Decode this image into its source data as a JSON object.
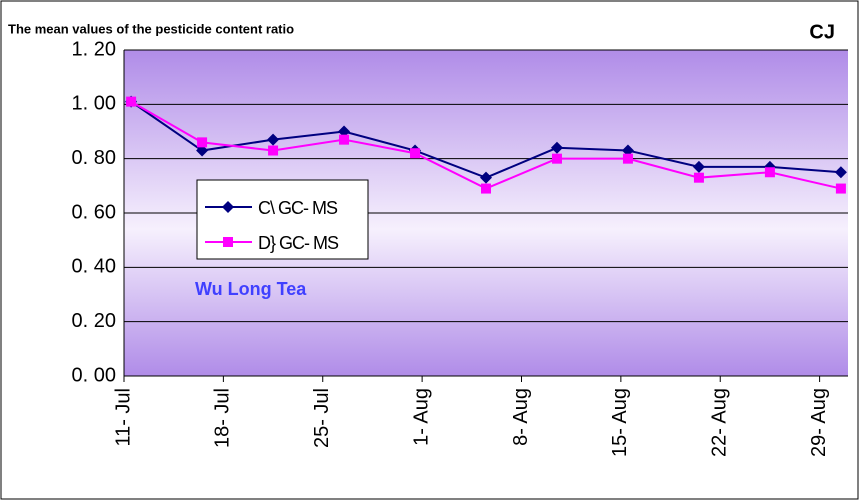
{
  "chart_data": {
    "type": "line",
    "title": "The mean values of the pesticide content ratio",
    "corner_label": "CJ",
    "annotation": "Wu Long Tea",
    "x": [
      "07-11",
      "07-16",
      "07-21",
      "07-26",
      "07-31",
      "08-05",
      "08-10",
      "08-15",
      "08-20",
      "08-25",
      "08-30"
    ],
    "xlim": [
      "07-11",
      "08-30"
    ],
    "xticks": [
      {
        "value": "07-11",
        "label": "11- Jul"
      },
      {
        "value": "07-18",
        "label": "18- Jul"
      },
      {
        "value": "07-25",
        "label": "25- Jul"
      },
      {
        "value": "08-01",
        "label": "1- Aug"
      },
      {
        "value": "08-08",
        "label": "8- Aug"
      },
      {
        "value": "08-15",
        "label": "15- Aug"
      },
      {
        "value": "08-22",
        "label": "22- Aug"
      },
      {
        "value": "08-29",
        "label": "29- Aug"
      }
    ],
    "ylim": [
      0,
      1.2
    ],
    "yticks": [
      {
        "value": 0,
        "label": "0. 00"
      },
      {
        "value": 0.2,
        "label": "0. 20"
      },
      {
        "value": 0.4,
        "label": "0. 40"
      },
      {
        "value": 0.6,
        "label": "0. 60"
      },
      {
        "value": 0.8,
        "label": "0. 80"
      },
      {
        "value": 1.0,
        "label": "1. 00"
      },
      {
        "value": 1.2,
        "label": "1. 20"
      }
    ],
    "grid": true,
    "series": [
      {
        "name": "C\\ GC- MS",
        "color": "#000080",
        "marker": "diamond",
        "values": [
          1.01,
          0.83,
          0.87,
          0.9,
          0.83,
          0.73,
          0.84,
          0.83,
          0.77,
          0.77,
          0.75
        ]
      },
      {
        "name": "D} GC- MS",
        "color": "#ff00ff",
        "marker": "square",
        "values": [
          1.01,
          0.86,
          0.83,
          0.87,
          0.82,
          0.69,
          0.8,
          0.8,
          0.73,
          0.75,
          0.69
        ]
      }
    ]
  }
}
